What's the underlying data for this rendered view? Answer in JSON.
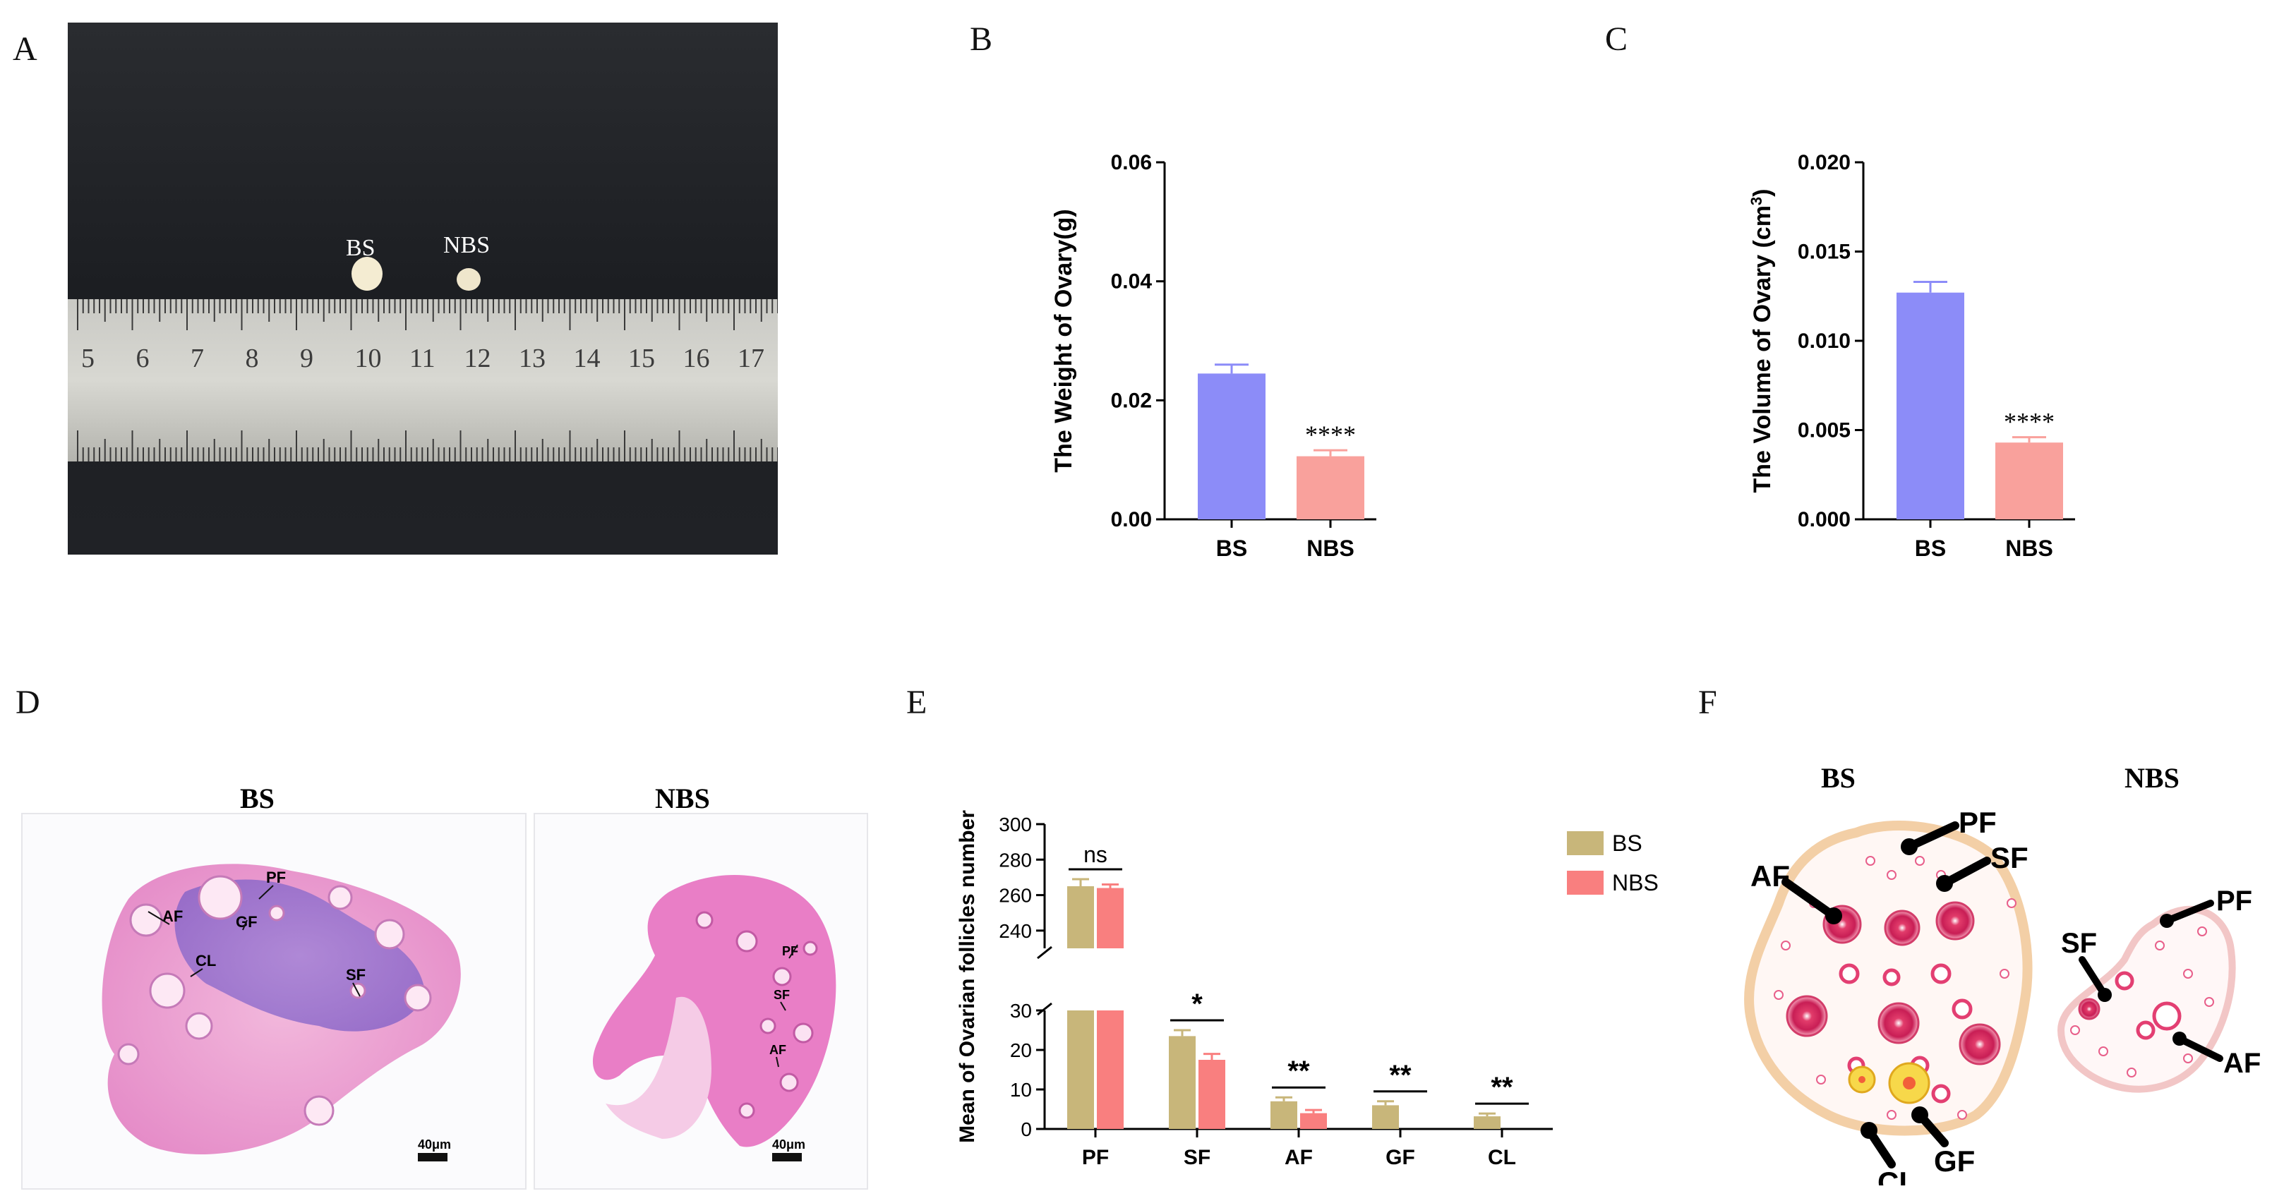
{
  "panels": {
    "a": "A",
    "b": "B",
    "c": "C",
    "d": "D",
    "e": "E",
    "f": "F"
  },
  "photo": {
    "label_bs": "BS",
    "label_nbs": "NBS",
    "ruler_numbers": [
      "5",
      "6",
      "7",
      "8",
      "9",
      "10",
      "11",
      "12",
      "13",
      "14",
      "15",
      "16",
      "17"
    ]
  },
  "histology": {
    "bs_title": "BS",
    "nbs_title": "NBS",
    "bs_labels": [
      "PF",
      "AF",
      "GF",
      "SF",
      "CL"
    ],
    "nbs_labels": [
      "PF",
      "SF",
      "AF"
    ],
    "scale_bar": "40μm"
  },
  "schematic": {
    "bs_title": "BS",
    "nbs_title": "NBS",
    "bs_labels": [
      "PF",
      "SF",
      "AF",
      "GF",
      "CL"
    ],
    "nbs_labels": [
      "PF",
      "SF",
      "AF"
    ]
  },
  "colors": {
    "bs_blue": "#8c8cf8",
    "nbs_pink": "#f9a19c",
    "bs_khaki": "#c8b67a",
    "nbs_red": "#f97f7f"
  },
  "chart_data": [
    {
      "type": "bar",
      "panel": "B",
      "categories": [
        "BS",
        "NBS"
      ],
      "values": [
        0.0245,
        0.0106
      ],
      "errors": [
        0.0015,
        0.001
      ],
      "ylabel": "The Weight of Ovary(g)",
      "ylim": [
        0,
        0.06
      ],
      "yticks": [
        "0.00",
        "0.02",
        "0.04",
        "0.06"
      ],
      "annotations": [
        {
          "category": "NBS",
          "text": "****"
        }
      ]
    },
    {
      "type": "bar",
      "panel": "C",
      "categories": [
        "BS",
        "NBS"
      ],
      "values": [
        0.0127,
        0.0043
      ],
      "errors": [
        0.0006,
        0.0003
      ],
      "ylabel": "The Volume of Ovary  (cm",
      "ylabel_sup": "3",
      "ylabel_end": ")",
      "ylim": [
        0,
        0.02
      ],
      "yticks": [
        "0.000",
        "0.005",
        "0.010",
        "0.015",
        "0.020"
      ],
      "annotations": [
        {
          "category": "NBS",
          "text": "****"
        }
      ]
    },
    {
      "type": "bar",
      "panel": "E",
      "categories": [
        "PF",
        "SF",
        "AF",
        "GF",
        "CL"
      ],
      "series": [
        {
          "name": "BS",
          "values": [
            265,
            23.5,
            7,
            6,
            3.2
          ],
          "errors": [
            4,
            1.5,
            1,
            1,
            0.7
          ]
        },
        {
          "name": "NBS",
          "values": [
            264,
            17.5,
            4,
            0,
            0
          ],
          "errors": [
            2,
            1.5,
            0.8,
            0,
            0
          ]
        }
      ],
      "ylabel": "Mean of Ovarian follicles number",
      "y_break": {
        "lower": [
          0,
          30
        ],
        "upper": [
          230,
          300
        ]
      },
      "yticks_lower": [
        "0",
        "10",
        "20",
        "30"
      ],
      "yticks_upper": [
        "240",
        "260",
        "280",
        "300"
      ],
      "significance": [
        "ns",
        "*",
        "**",
        "**",
        "**"
      ],
      "legend_position": "right"
    }
  ]
}
